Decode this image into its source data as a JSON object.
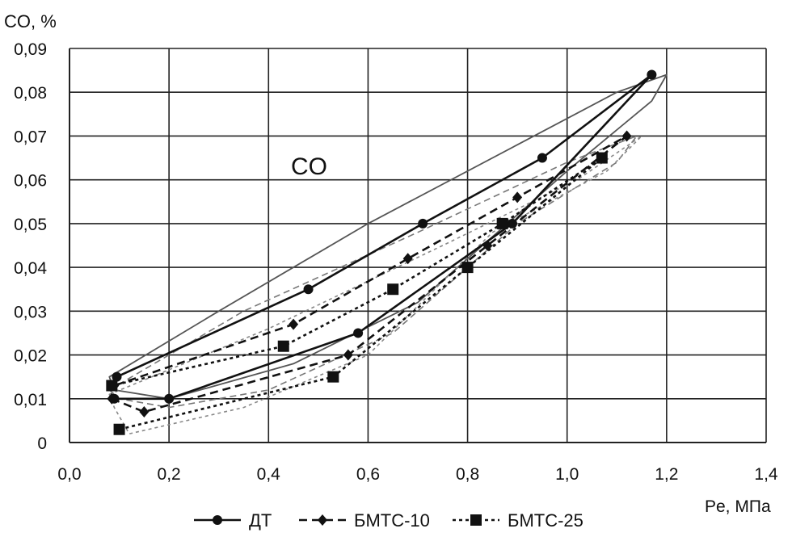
{
  "chart_data": {
    "type": "line",
    "title": "CO",
    "ylabel": "CO, %",
    "xlabel": "Pe, МПа",
    "xlim": [
      0,
      1.4
    ],
    "ylim": [
      0,
      0.09
    ],
    "grid": true,
    "legend_position": "bottom",
    "x_ticks": [
      "0,0",
      "0,2",
      "0,4",
      "0,6",
      "0,8",
      "1,0",
      "1,2",
      "1,4"
    ],
    "y_ticks": [
      "0",
      "0,01",
      "0,02",
      "0,03",
      "0,04",
      "0,05",
      "0,06",
      "0,07",
      "0,08",
      "0,09"
    ],
    "series": [
      {
        "name": "ДТ",
        "marker": "circle",
        "dash": "solid",
        "color": "#111111",
        "points": [
          [
            0.09,
            0.01
          ],
          [
            0.2,
            0.01
          ],
          [
            0.58,
            0.025
          ],
          [
            0.89,
            0.05
          ],
          [
            1.17,
            0.084
          ],
          [
            0.95,
            0.065
          ],
          [
            0.71,
            0.05
          ],
          [
            0.48,
            0.035
          ],
          [
            0.095,
            0.015
          ]
        ]
      },
      {
        "name": "БМТС-10",
        "marker": "diamond",
        "dash": "dashed",
        "color": "#111111",
        "points": [
          [
            0.085,
            0.01
          ],
          [
            0.15,
            0.007
          ],
          [
            0.56,
            0.02
          ],
          [
            0.84,
            0.045
          ],
          [
            1.12,
            0.07
          ],
          [
            0.9,
            0.056
          ],
          [
            0.68,
            0.042
          ],
          [
            0.45,
            0.027
          ],
          [
            0.09,
            0.013
          ]
        ]
      },
      {
        "name": "БМТС-25",
        "marker": "square",
        "dash": "dotted",
        "color": "#111111",
        "points": [
          [
            0.1,
            0.003
          ],
          [
            0.53,
            0.015
          ],
          [
            0.8,
            0.04
          ],
          [
            1.07,
            0.065
          ],
          [
            0.87,
            0.05
          ],
          [
            0.65,
            0.035
          ],
          [
            0.43,
            0.022
          ],
          [
            0.085,
            0.013
          ]
        ]
      }
    ]
  }
}
